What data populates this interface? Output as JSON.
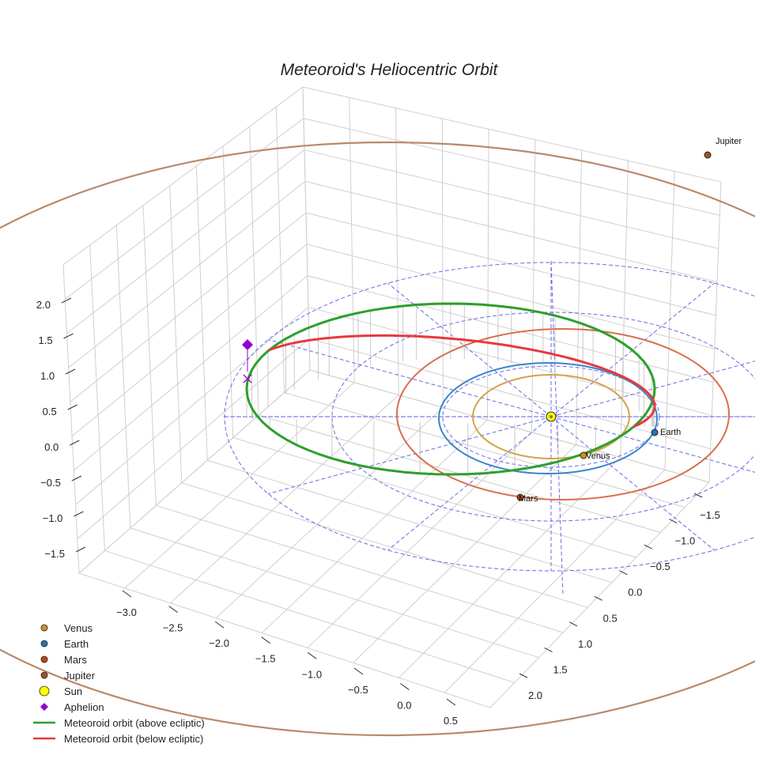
{
  "chart_data": {
    "type": "3d-line",
    "title": "Meteoroid's Heliocentric Orbit",
    "x_ticks": [
      "−3.0",
      "−2.5",
      "−2.0",
      "−1.5",
      "−1.0",
      "−0.5",
      "0.0",
      "0.5"
    ],
    "y_ticks": [
      "−1.5",
      "−1.0",
      "−0.5",
      "0.0",
      "0.5",
      "1.0",
      "1.5",
      "2.0"
    ],
    "z_ticks": [
      "−1.5",
      "−1.0",
      "−0.5",
      "0.0",
      "0.5",
      "1.0",
      "1.5",
      "2.0"
    ],
    "xlim": [
      -3.3,
      0.7
    ],
    "ylim": [
      -1.8,
      2.2
    ],
    "zlim": [
      -1.8,
      2.2
    ],
    "planets": [
      {
        "name": "Venus",
        "label": "Venus",
        "color": "#d98a1f",
        "orbit_color": "#d4a34a",
        "orbit_radius_au": 0.72
      },
      {
        "name": "Earth",
        "label": "Earth",
        "color": "#1f77b4",
        "orbit_color": "#3a86c8",
        "orbit_radius_au": 1.0
      },
      {
        "name": "Mars",
        "label": "Mars",
        "color": "#c1440e",
        "orbit_color": "#d8704a",
        "orbit_radius_au": 1.52
      },
      {
        "name": "Jupiter",
        "label": "Jupiter",
        "color": "#a0522d",
        "orbit_color": "#b88a6a",
        "orbit_radius_au": 5.2
      }
    ],
    "sun": {
      "name": "Sun",
      "color": "#ffff00"
    },
    "aphelion": {
      "name": "Aphelion",
      "color": "#9400d3"
    },
    "meteoroid_above": {
      "name": "Meteoroid orbit (above ecliptic)",
      "color": "#2ca02c"
    },
    "meteoroid_below": {
      "name": "Meteoroid orbit (below ecliptic)",
      "color": "#e8383d"
    },
    "ecliptic_grid": {
      "color": "#3b3bdb",
      "style": "dashed",
      "rings_au": [
        1.0,
        2.0,
        3.0
      ]
    },
    "legend_position": "bottom-left"
  }
}
